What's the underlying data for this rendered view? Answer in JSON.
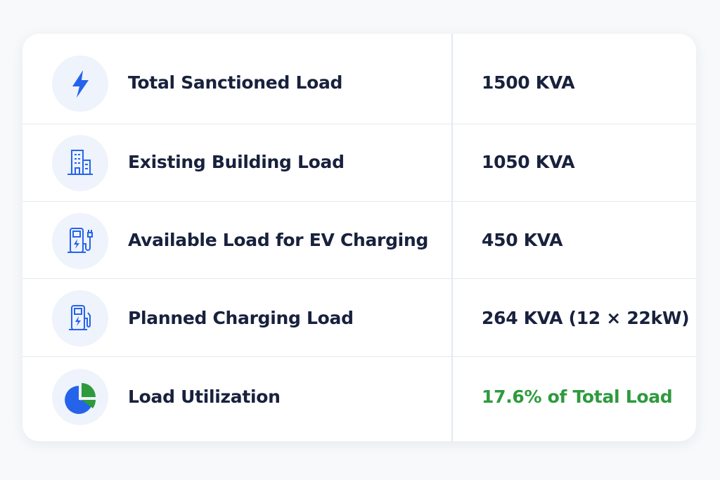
{
  "table": {
    "rows": [
      {
        "label": "Total Sanctioned Load",
        "value": "1500 KVA"
      },
      {
        "label": "Existing Building Load",
        "value": "1050 KVA"
      },
      {
        "label": "Available Load for EV Charging",
        "value": "450 KVA"
      },
      {
        "label": "Planned Charging Load",
        "value": "264 KVA (12 × 22kW)"
      },
      {
        "label": "Load Utilization",
        "value": "17.6% of Total Load"
      }
    ]
  }
}
